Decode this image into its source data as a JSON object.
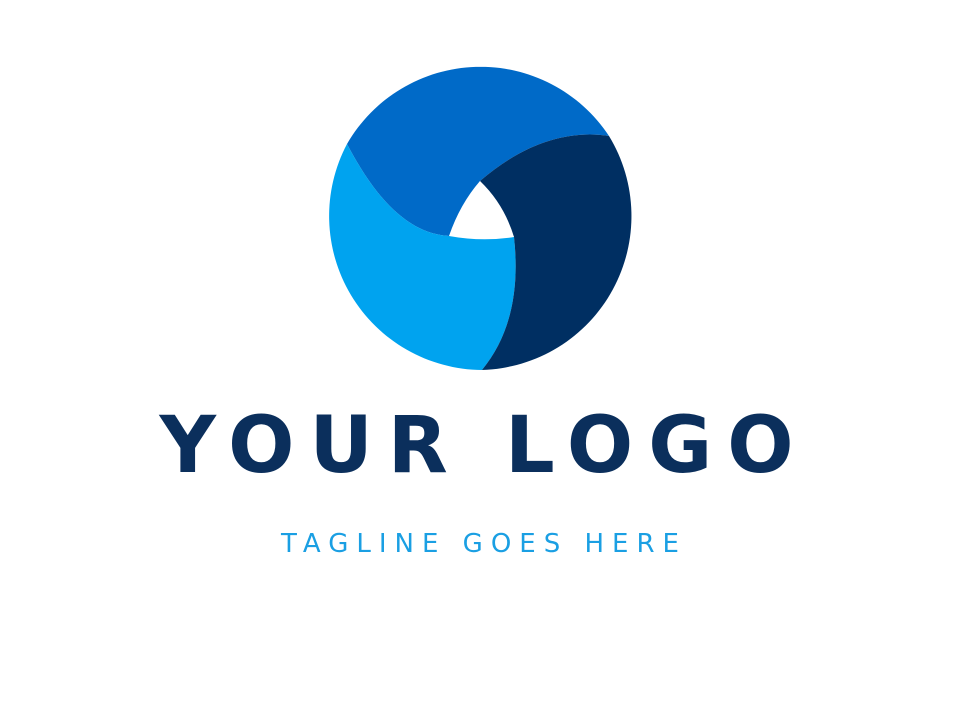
{
  "logo": {
    "name": "YOUR LOGO",
    "tagline": "TAGLINE GOES HERE",
    "icon": "tri-swirl-circle-emblem"
  },
  "colors": {
    "background": "#ffffff",
    "name_text": "#0b2f5c",
    "tagline_text": "#1a9fe3",
    "segment_top": "#006ac8",
    "segment_left": "#00a3ef",
    "segment_right": "#002f62",
    "center_hole": "#ffffff"
  }
}
